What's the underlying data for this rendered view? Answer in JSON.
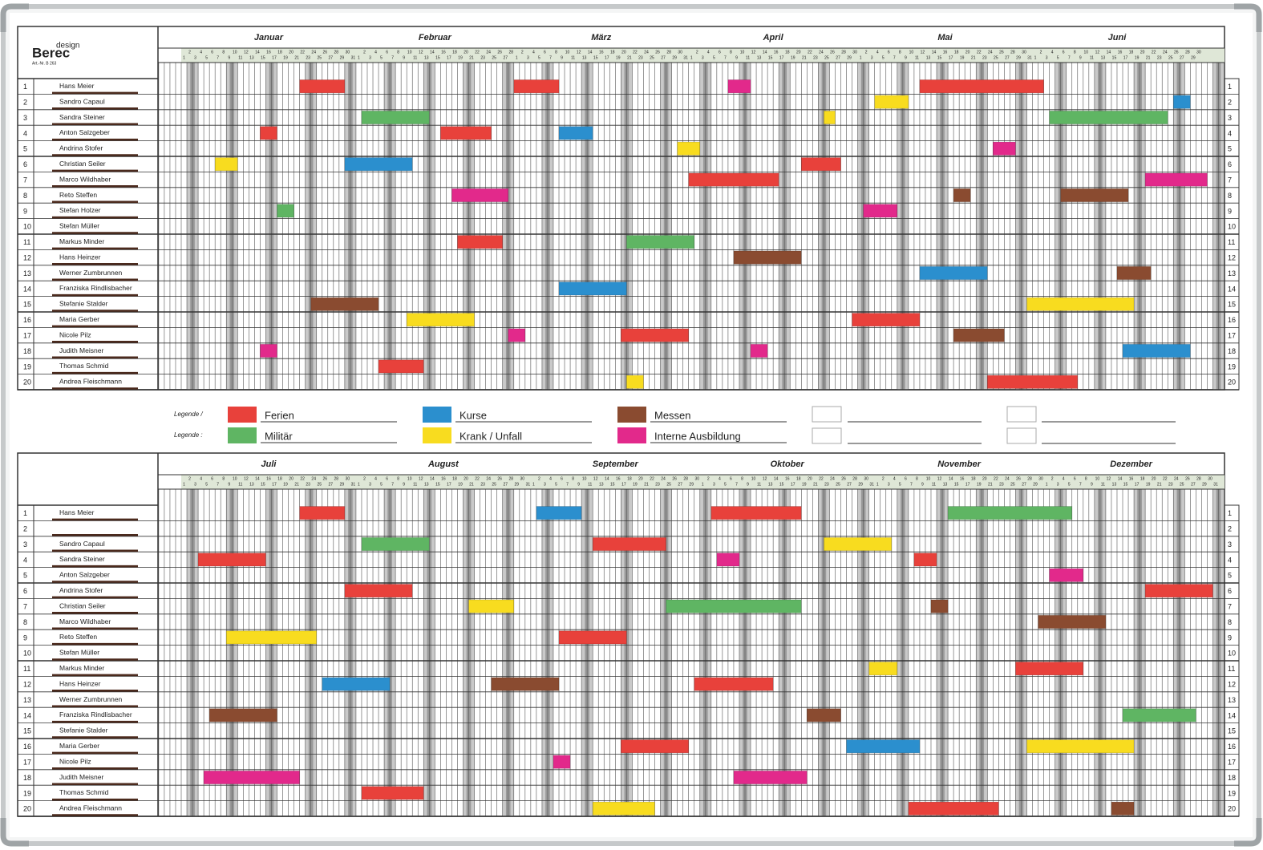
{
  "logo": {
    "small": "design",
    "brand": "Berec",
    "article": "Art.-Nr. B 263"
  },
  "legend": {
    "labels": [
      "Legende /",
      "Legende :"
    ],
    "items": [
      {
        "label": "Ferien",
        "color": "#e8413b"
      },
      {
        "label": "Kurse",
        "color": "#2b8fce"
      },
      {
        "label": "Messen",
        "color": "#8a4b30"
      },
      {
        "label": "Militär",
        "color": "#5fb563"
      },
      {
        "label": "Krank / Unfall",
        "color": "#f8dc1f"
      },
      {
        "label": "Interne Ausbildung",
        "color": "#e2298b"
      }
    ]
  },
  "halves": [
    {
      "months": [
        {
          "name": "Januar",
          "days": [
            1,
            2,
            3,
            4,
            5,
            6,
            7,
            8,
            9,
            10,
            11,
            12,
            13,
            14,
            15,
            16,
            17,
            18,
            19,
            20,
            21,
            22,
            23,
            24,
            25,
            26,
            27,
            28,
            29,
            30,
            31
          ]
        },
        {
          "name": "Februar",
          "days": [
            1,
            2,
            3,
            4,
            5,
            6,
            7,
            8,
            9,
            10,
            11,
            12,
            13,
            14,
            15,
            16,
            17,
            18,
            19,
            20,
            21,
            22,
            23,
            24,
            25,
            26,
            27,
            28
          ]
        },
        {
          "name": "März",
          "days": [
            1,
            2,
            3,
            4,
            5,
            6,
            7,
            8,
            9,
            10,
            11,
            12,
            13,
            14,
            15,
            16,
            17,
            18,
            19,
            20,
            21,
            22,
            23,
            24,
            25,
            26,
            27,
            28,
            29,
            30,
            31
          ]
        },
        {
          "name": "April",
          "days": [
            1,
            2,
            3,
            4,
            5,
            6,
            7,
            8,
            9,
            10,
            11,
            12,
            13,
            14,
            15,
            16,
            17,
            18,
            19,
            20,
            21,
            22,
            23,
            24,
            25,
            26,
            27,
            28,
            29,
            30
          ]
        },
        {
          "name": "Mai",
          "days": [
            1,
            2,
            3,
            4,
            5,
            6,
            7,
            8,
            9,
            10,
            11,
            12,
            13,
            14,
            15,
            16,
            17,
            18,
            19,
            20,
            21,
            22,
            23,
            24,
            25,
            26,
            27,
            28,
            29,
            30,
            31
          ]
        },
        {
          "name": "Juni",
          "days": [
            1,
            2,
            3,
            4,
            5,
            6,
            7,
            8,
            9,
            10,
            11,
            12,
            13,
            14,
            15,
            16,
            17,
            18,
            19,
            20,
            21,
            22,
            23,
            24,
            25,
            26,
            27,
            28,
            29,
            30
          ]
        }
      ],
      "rows": [
        {
          "number": 1,
          "name": "Hans Meier"
        },
        {
          "number": 2,
          "name": "Sandro Capaul"
        },
        {
          "number": 3,
          "name": "Sandra Steiner"
        },
        {
          "number": 4,
          "name": "Anton Salzgeber"
        },
        {
          "number": 5,
          "name": "Andrina Stofer"
        },
        {
          "number": 6,
          "name": "Christian Seiler"
        },
        {
          "number": 7,
          "name": "Marco Wildhaber"
        },
        {
          "number": 8,
          "name": "Reto Steffen"
        },
        {
          "number": 9,
          "name": "Stefan Holzer"
        },
        {
          "number": 10,
          "name": "Stefan Müller"
        },
        {
          "number": 11,
          "name": "Markus Minder"
        },
        {
          "number": 12,
          "name": "Hans Heinzer"
        },
        {
          "number": 13,
          "name": "Werner Zumbrunnen"
        },
        {
          "number": 14,
          "name": "Franziska Rindlisbacher"
        },
        {
          "number": 15,
          "name": "Stefanie Stalder"
        },
        {
          "number": 16,
          "name": "Maria Gerber"
        },
        {
          "number": 17,
          "name": "Nicole Pilz"
        },
        {
          "number": 18,
          "name": "Judith Meisner"
        },
        {
          "number": 19,
          "name": "Thomas Schmid"
        },
        {
          "number": 20,
          "name": "Andrea Fleischmann"
        }
      ],
      "bars": [
        {
          "row": 0,
          "start": 21,
          "days": 8,
          "type": 0
        },
        {
          "row": 0,
          "start": 59,
          "days": 8,
          "type": 0
        },
        {
          "row": 0,
          "start": 97,
          "days": 4,
          "type": 5
        },
        {
          "row": 0,
          "start": 131,
          "days": 22,
          "type": 0
        },
        {
          "row": 1,
          "start": 123,
          "days": 6,
          "type": 4
        },
        {
          "row": 1,
          "start": 176,
          "days": 3,
          "type": 1
        },
        {
          "row": 2,
          "start": 32,
          "days": 12,
          "type": 3
        },
        {
          "row": 2,
          "start": 114,
          "days": 2,
          "type": 4
        },
        {
          "row": 2,
          "start": 154,
          "days": 21,
          "type": 3
        },
        {
          "row": 3,
          "start": 14,
          "days": 3,
          "type": 0
        },
        {
          "row": 3,
          "start": 46,
          "days": 9,
          "type": 0
        },
        {
          "row": 3,
          "start": 67,
          "days": 6,
          "type": 1
        },
        {
          "row": 4,
          "start": 88,
          "days": 4,
          "type": 4
        },
        {
          "row": 4,
          "start": 144,
          "days": 4,
          "type": 5
        },
        {
          "row": 5,
          "start": 6,
          "days": 4,
          "type": 4
        },
        {
          "row": 5,
          "start": 29,
          "days": 12,
          "type": 1
        },
        {
          "row": 5,
          "start": 110,
          "days": 7,
          "type": 0
        },
        {
          "row": 6,
          "start": 90,
          "days": 16,
          "type": 0
        },
        {
          "row": 6,
          "start": 171,
          "days": 11,
          "type": 5
        },
        {
          "row": 7,
          "start": 48,
          "days": 10,
          "type": 5
        },
        {
          "row": 7,
          "start": 137,
          "days": 3,
          "type": 2
        },
        {
          "row": 7,
          "start": 156,
          "days": 12,
          "type": 2
        },
        {
          "row": 8,
          "start": 17,
          "days": 3,
          "type": 3
        },
        {
          "row": 8,
          "start": 121,
          "days": 6,
          "type": 5
        },
        {
          "row": 10,
          "start": 49,
          "days": 8,
          "type": 0
        },
        {
          "row": 10,
          "start": 79,
          "days": 12,
          "type": 3
        },
        {
          "row": 11,
          "start": 98,
          "days": 12,
          "type": 2
        },
        {
          "row": 12,
          "start": 131,
          "days": 12,
          "type": 1
        },
        {
          "row": 12,
          "start": 166,
          "days": 6,
          "type": 2
        },
        {
          "row": 13,
          "start": 67,
          "days": 12,
          "type": 1
        },
        {
          "row": 14,
          "start": 23,
          "days": 12,
          "type": 2
        },
        {
          "row": 14,
          "start": 150,
          "days": 19,
          "type": 4
        },
        {
          "row": 15,
          "start": 40,
          "days": 12,
          "type": 4
        },
        {
          "row": 15,
          "start": 119,
          "days": 12,
          "type": 0
        },
        {
          "row": 16,
          "start": 58,
          "days": 3,
          "type": 5
        },
        {
          "row": 16,
          "start": 78,
          "days": 12,
          "type": 0
        },
        {
          "row": 16,
          "start": 137,
          "days": 9,
          "type": 2
        },
        {
          "row": 17,
          "start": 14,
          "days": 3,
          "type": 5
        },
        {
          "row": 17,
          "start": 101,
          "days": 3,
          "type": 5
        },
        {
          "row": 17,
          "start": 167,
          "days": 12,
          "type": 1
        },
        {
          "row": 18,
          "start": 35,
          "days": 8,
          "type": 0
        },
        {
          "row": 19,
          "start": 79,
          "days": 3,
          "type": 4
        },
        {
          "row": 19,
          "start": 143,
          "days": 16,
          "type": 0
        }
      ]
    },
    {
      "months": [
        {
          "name": "Juli",
          "days": [
            1,
            2,
            3,
            4,
            5,
            6,
            7,
            8,
            9,
            10,
            11,
            12,
            13,
            14,
            15,
            16,
            17,
            18,
            19,
            20,
            21,
            22,
            23,
            24,
            25,
            26,
            27,
            28,
            29,
            30,
            31
          ]
        },
        {
          "name": "August",
          "days": [
            1,
            2,
            3,
            4,
            5,
            6,
            7,
            8,
            9,
            10,
            11,
            12,
            13,
            14,
            15,
            16,
            17,
            18,
            19,
            20,
            21,
            22,
            23,
            24,
            25,
            26,
            27,
            28,
            29,
            30,
            31
          ]
        },
        {
          "name": "September",
          "days": [
            1,
            2,
            3,
            4,
            5,
            6,
            7,
            8,
            9,
            10,
            11,
            12,
            13,
            14,
            15,
            16,
            17,
            18,
            19,
            20,
            21,
            22,
            23,
            24,
            25,
            26,
            27,
            28,
            29,
            30
          ]
        },
        {
          "name": "Oktober",
          "days": [
            1,
            2,
            3,
            4,
            5,
            6,
            7,
            8,
            9,
            10,
            11,
            12,
            13,
            14,
            15,
            16,
            17,
            18,
            19,
            20,
            21,
            22,
            23,
            24,
            25,
            26,
            27,
            28,
            29,
            30,
            31
          ]
        },
        {
          "name": "November",
          "days": [
            1,
            2,
            3,
            4,
            5,
            6,
            7,
            8,
            9,
            10,
            11,
            12,
            13,
            14,
            15,
            16,
            17,
            18,
            19,
            20,
            21,
            22,
            23,
            24,
            25,
            26,
            27,
            28,
            29,
            30
          ]
        },
        {
          "name": "Dezember",
          "days": [
            1,
            2,
            3,
            4,
            5,
            6,
            7,
            8,
            9,
            10,
            11,
            12,
            13,
            14,
            15,
            16,
            17,
            18,
            19,
            20,
            21,
            22,
            23,
            24,
            25,
            26,
            27,
            28,
            29,
            30,
            31
          ]
        }
      ],
      "rows": [
        {
          "number": 1,
          "name": "Hans Meier"
        },
        {
          "number": 2,
          "name": null
        },
        {
          "number": 3,
          "name": "Sandro Capaul"
        },
        {
          "number": 4,
          "name": "Sandra Steiner"
        },
        {
          "number": 5,
          "name": "Anton Salzgeber"
        },
        {
          "number": 6,
          "name": "Andrina Stofer"
        },
        {
          "number": 7,
          "name": "Christian Seiler"
        },
        {
          "number": 8,
          "name": "Marco Wildhaber"
        },
        {
          "number": 9,
          "name": "Reto Steffen"
        },
        {
          "number": 10,
          "name": "Stefan Müller"
        },
        {
          "number": 11,
          "name": "Markus Minder"
        },
        {
          "number": 12,
          "name": "Hans Heinzer"
        },
        {
          "number": 13,
          "name": "Werner Zumbrunnen"
        },
        {
          "number": 14,
          "name": "Franziska Rindlisbacher"
        },
        {
          "number": 15,
          "name": "Stefanie Stalder"
        },
        {
          "number": 16,
          "name": "Maria Gerber"
        },
        {
          "number": 17,
          "name": "Nicole Pilz"
        },
        {
          "number": 18,
          "name": "Judith Meisner"
        },
        {
          "number": 19,
          "name": "Thomas Schmid"
        },
        {
          "number": 20,
          "name": "Andrea Fleischmann"
        }
      ],
      "bars": [
        {
          "row": 0,
          "start": 21,
          "days": 8,
          "type": 0
        },
        {
          "row": 0,
          "start": 63,
          "days": 8,
          "type": 1
        },
        {
          "row": 0,
          "start": 94,
          "days": 16,
          "type": 0
        },
        {
          "row": 0,
          "start": 136,
          "days": 22,
          "type": 3
        },
        {
          "row": 2,
          "start": 32,
          "days": 12,
          "type": 3
        },
        {
          "row": 2,
          "start": 73,
          "days": 13,
          "type": 0
        },
        {
          "row": 2,
          "start": 114,
          "days": 12,
          "type": 4
        },
        {
          "row": 3,
          "start": 3,
          "days": 12,
          "type": 0
        },
        {
          "row": 3,
          "start": 95,
          "days": 4,
          "type": 5
        },
        {
          "row": 3,
          "start": 130,
          "days": 4,
          "type": 0
        },
        {
          "row": 4,
          "start": 154,
          "days": 6,
          "type": 5
        },
        {
          "row": 5,
          "start": 29,
          "days": 12,
          "type": 0
        },
        {
          "row": 5,
          "start": 171,
          "days": 12,
          "type": 0
        },
        {
          "row": 6,
          "start": 51,
          "days": 8,
          "type": 4
        },
        {
          "row": 6,
          "start": 86,
          "days": 24,
          "type": 3
        },
        {
          "row": 6,
          "start": 133,
          "days": 3,
          "type": 2
        },
        {
          "row": 7,
          "start": 152,
          "days": 12,
          "type": 2
        },
        {
          "row": 8,
          "start": 8,
          "days": 16,
          "type": 4
        },
        {
          "row": 8,
          "start": 67,
          "days": 12,
          "type": 0
        },
        {
          "row": 10,
          "start": 122,
          "days": 5,
          "type": 4
        },
        {
          "row": 10,
          "start": 148,
          "days": 12,
          "type": 0
        },
        {
          "row": 11,
          "start": 25,
          "days": 12,
          "type": 1
        },
        {
          "row": 11,
          "start": 55,
          "days": 12,
          "type": 2
        },
        {
          "row": 11,
          "start": 91,
          "days": 14,
          "type": 0
        },
        {
          "row": 13,
          "start": 5,
          "days": 12,
          "type": 2
        },
        {
          "row": 13,
          "start": 111,
          "days": 6,
          "type": 2
        },
        {
          "row": 13,
          "start": 167,
          "days": 13,
          "type": 3
        },
        {
          "row": 15,
          "start": 78,
          "days": 12,
          "type": 0
        },
        {
          "row": 15,
          "start": 118,
          "days": 13,
          "type": 1
        },
        {
          "row": 15,
          "start": 150,
          "days": 19,
          "type": 4
        },
        {
          "row": 16,
          "start": 66,
          "days": 3,
          "type": 5
        },
        {
          "row": 17,
          "start": 4,
          "days": 17,
          "type": 5
        },
        {
          "row": 17,
          "start": 98,
          "days": 13,
          "type": 5
        },
        {
          "row": 18,
          "start": 32,
          "days": 11,
          "type": 0
        },
        {
          "row": 19,
          "start": 73,
          "days": 11,
          "type": 4
        },
        {
          "row": 19,
          "start": 129,
          "days": 16,
          "type": 0
        },
        {
          "row": 19,
          "start": 165,
          "days": 4,
          "type": 2
        }
      ]
    }
  ]
}
